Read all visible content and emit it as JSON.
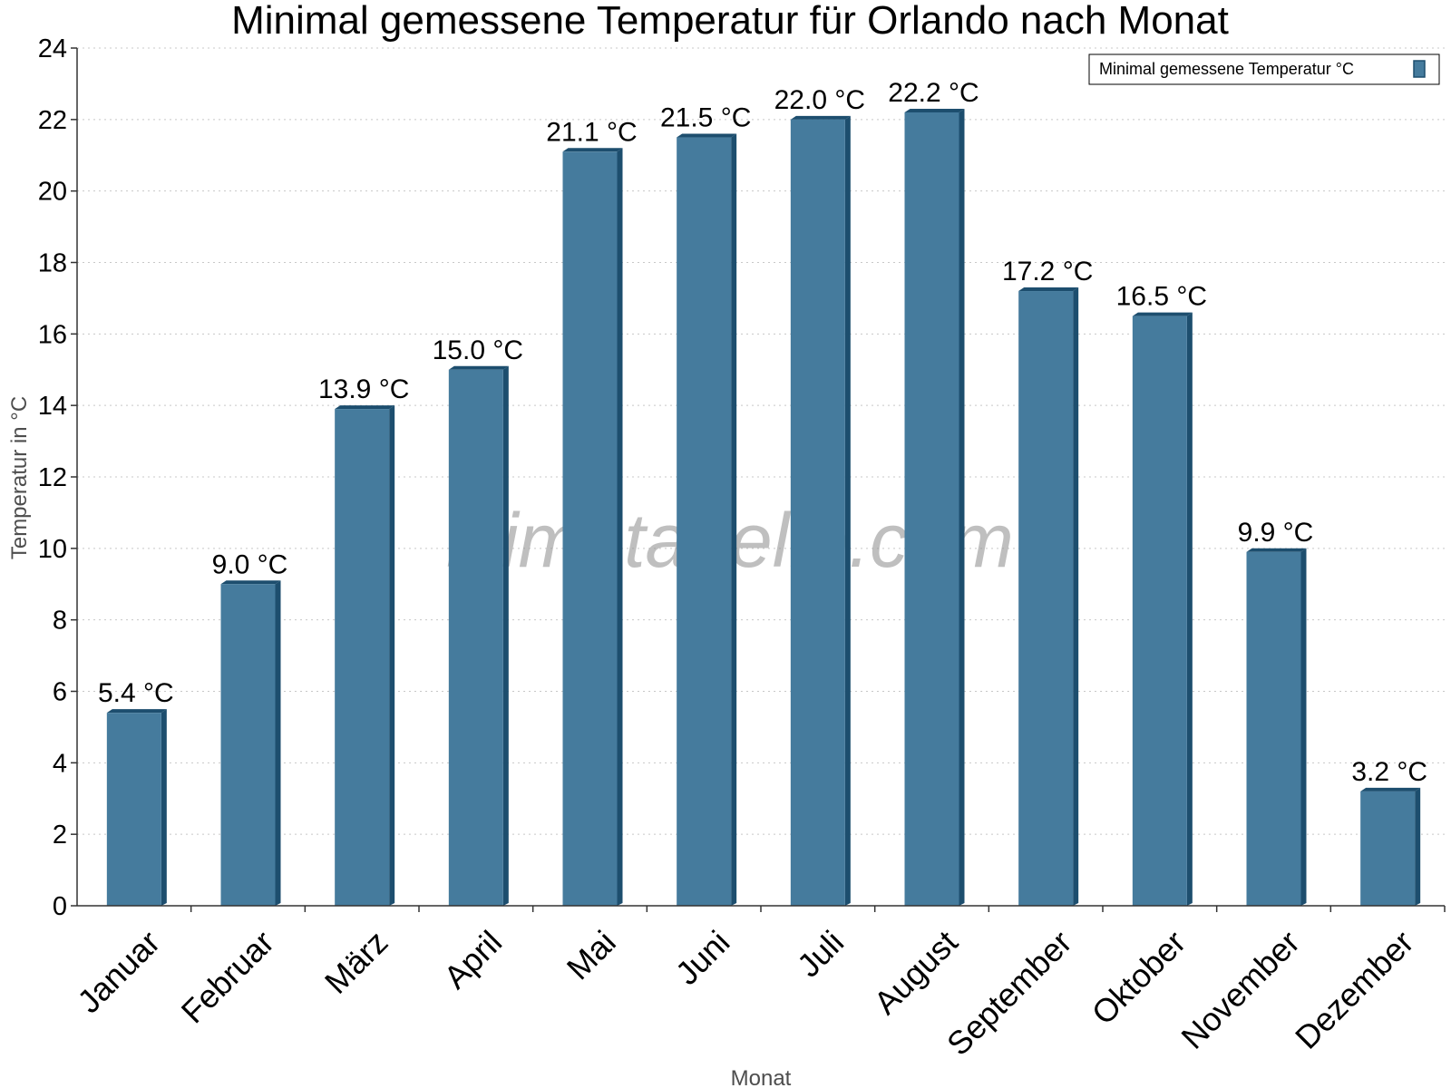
{
  "chart_data": {
    "type": "bar",
    "title": "Minimal gemessene Temperatur für Orlando nach Monat",
    "xlabel": "Monat",
    "ylabel": "Temperatur in °C",
    "ylim": [
      0,
      24
    ],
    "yticks": [
      0,
      2,
      4,
      6,
      8,
      10,
      12,
      14,
      16,
      18,
      20,
      22,
      24
    ],
    "grid": true,
    "legend_position": "top-right",
    "categories": [
      "Januar",
      "Februar",
      "März",
      "April",
      "Mai",
      "Juni",
      "Juli",
      "August",
      "September",
      "Oktober",
      "November",
      "Dezember"
    ],
    "series": [
      {
        "name": "Minimal gemessene Temperatur °C",
        "values": [
          5.4,
          9.0,
          13.9,
          15.0,
          21.1,
          21.5,
          22.0,
          22.2,
          17.2,
          16.5,
          9.9,
          3.2
        ],
        "data_labels": [
          "5.4 °C",
          "9.0 °C",
          "13.9 °C",
          "15.0 °C",
          "21.1 °C",
          "21.5 °C",
          "22.0 °C",
          "22.2 °C",
          "17.2 °C",
          "16.5 °C",
          "9.9 °C",
          "3.2 °C"
        ],
        "color": "#457b9d",
        "edge_color": "#1d4e6e"
      }
    ],
    "watermark": "klimatabelle.com"
  }
}
